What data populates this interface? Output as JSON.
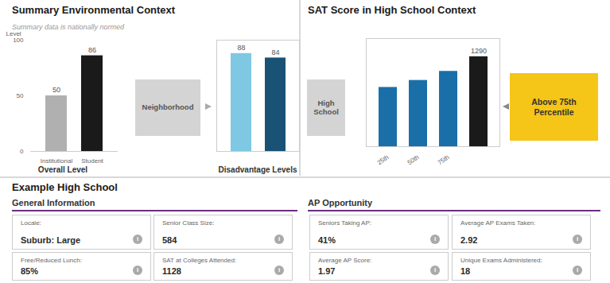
{
  "title": "Summary Environmental Context",
  "subtitle": "Summary data is nationally normed",
  "chart_data": [
    {
      "type": "bar",
      "title": "Overall Level",
      "categories": [
        "Institutional",
        "Student"
      ],
      "values": [
        50,
        86
      ],
      "colors": [
        "#b0b0b0",
        "#1a1a1a"
      ],
      "ylabel": "Level",
      "ylim": [
        0,
        100
      ],
      "yticks": [
        0,
        50,
        100
      ],
      "data_labels": true
    },
    {
      "type": "bar",
      "title": "Disadvantage Levels",
      "categories": [
        null,
        null
      ],
      "values": [
        88,
        84
      ],
      "colors": [
        "#7ec8e3",
        "#1a5276"
      ],
      "ylim": [
        0,
        100
      ],
      "tick_labels": false,
      "data_labels": true,
      "annotations": [
        {
          "text": "Neighborhood",
          "color": "#d4d4d4"
        },
        {
          "text": "High\nSchool",
          "color": "#d4d4d4"
        }
      ]
    },
    {
      "type": "bar",
      "title": "SAT Score in High School Context",
      "categories": [
        "25th",
        "50th",
        "75th",
        null
      ],
      "values": [
        850,
        950,
        1080,
        1290
      ],
      "value_labels": [
        null,
        null,
        null,
        "1290"
      ],
      "colors": [
        "#1a6fa8",
        "#1a6fa8",
        "#1a6fa8",
        "#1a1a1a"
      ],
      "ylim": [
        0,
        1550
      ],
      "tick_labels": "x",
      "data_labels": true,
      "annotations": [
        {
          "text": "Above 75th\nPercentile",
          "color": "#f5c518"
        }
      ]
    }
  ],
  "annotations": {
    "title": "Example High School",
    "icon": "i",
    "sections": [
      {
        "title": "General Information",
        "color": "#6b2f7f",
        "items": [
          {
            "label": "Locale:",
            "value": "Suburb: Large"
          },
          {
            "label": "Senior Class Size:",
            "value": "584"
          },
          {
            "label": "Free/Reduced Lunch:",
            "value": "85%"
          },
          {
            "label": "SAT at Colleges Attended:",
            "value": "1128"
          }
        ]
      },
      {
        "title": "AP Opportunity",
        "color": "#6b2f7f",
        "items": [
          {
            "label": "Seniors Taking AP:",
            "value": "41%"
          },
          {
            "label": "Average AP Exams Taken:",
            "value": "2.92"
          },
          {
            "label": "Average AP Score:",
            "value": "1.97"
          },
          {
            "label": "Unique Exams Administered:",
            "value": "18"
          }
        ]
      }
    ]
  }
}
